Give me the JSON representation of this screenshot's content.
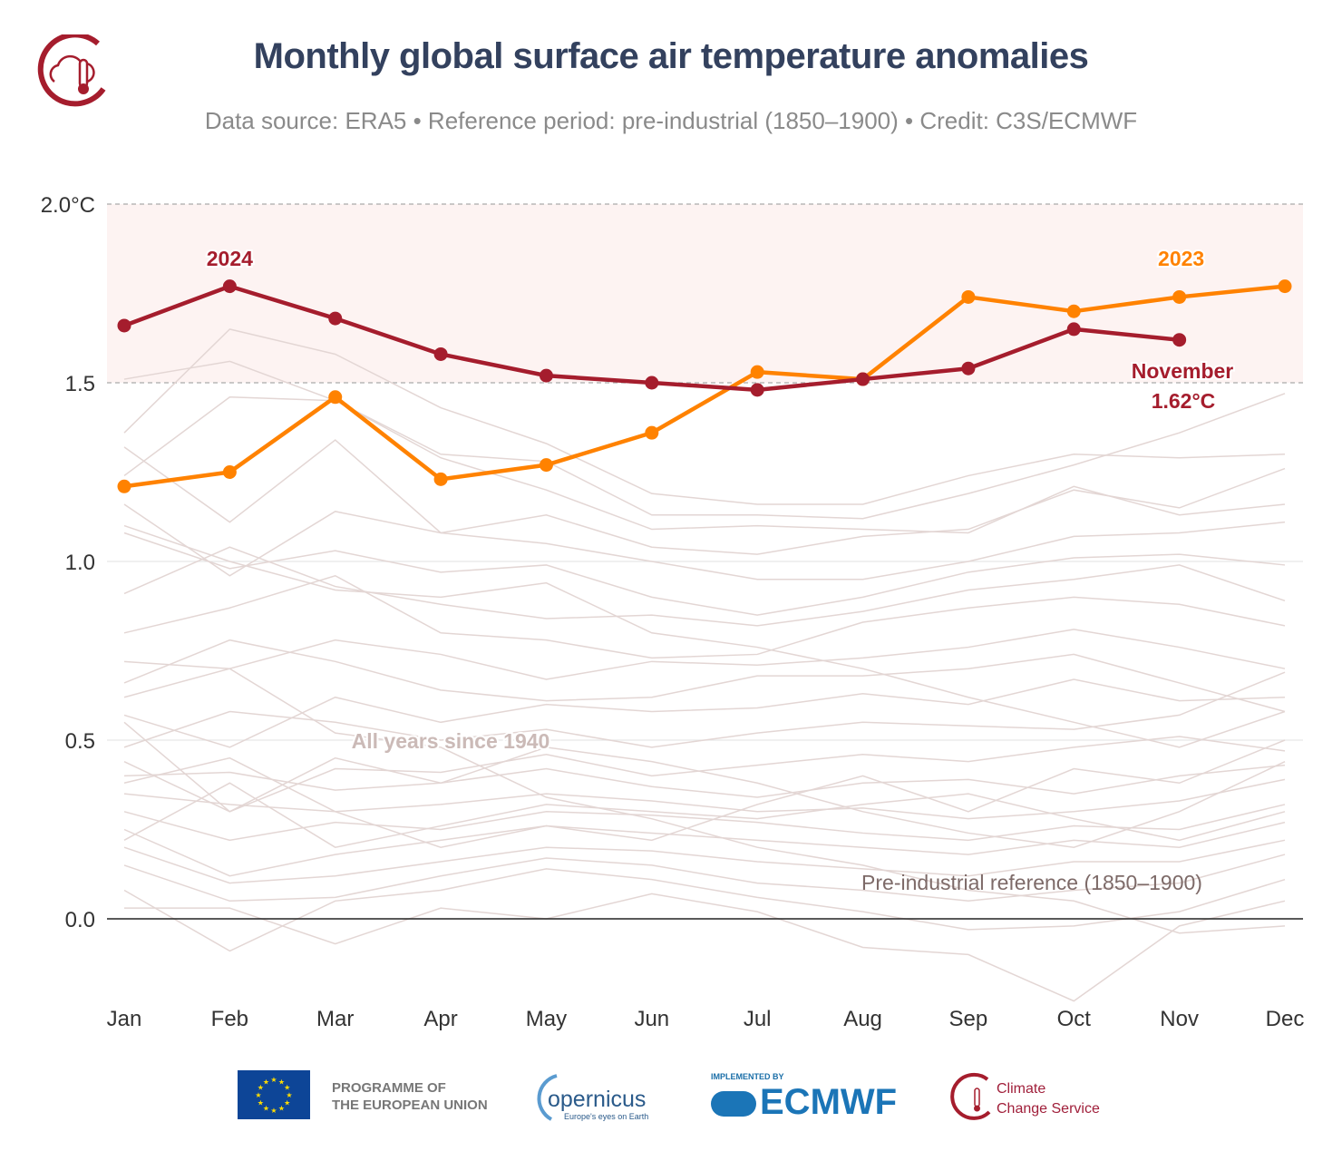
{
  "header": {
    "title": "Monthly global surface air temperature anomalies",
    "subtitle": "Data source: ERA5 • Reference period: pre-industrial (1850–1900) • Credit: C3S/ECMWF",
    "logo": "climate-change-service-logo"
  },
  "footer": {
    "eu_text_1": "PROGRAMME OF",
    "eu_text_2": "THE EUROPEAN UNION",
    "copernicus": "opernicus",
    "copernicus_tagline": "Europe's eyes on Earth",
    "implemented_by": "IMPLEMENTED BY",
    "ecmwf": "ECMWF",
    "c3s_1": "Climate",
    "c3s_2": "Change Service"
  },
  "chart_data": {
    "type": "line",
    "categories": [
      "Jan",
      "Feb",
      "Mar",
      "Apr",
      "May",
      "Jun",
      "Jul",
      "Aug",
      "Sep",
      "Oct",
      "Nov",
      "Dec"
    ],
    "ylim": [
      -0.25,
      2.0
    ],
    "yticks": [
      0.0,
      0.5,
      1.0,
      1.5,
      2.0
    ],
    "ytick_labels": [
      "0.0",
      "0.5",
      "1.0",
      "1.5",
      "2.0°C"
    ],
    "grid": true,
    "highlight_band": [
      1.5,
      2.0
    ],
    "colors": {
      "2024": "#a51d2d",
      "2023": "#ff8200",
      "background": "#e3d6d4",
      "band": "#fdf3f2"
    },
    "series": [
      {
        "name": "2024",
        "values": [
          1.66,
          1.77,
          1.68,
          1.58,
          1.52,
          1.5,
          1.48,
          1.51,
          1.54,
          1.65,
          1.62,
          null
        ]
      },
      {
        "name": "2023",
        "values": [
          1.21,
          1.25,
          1.46,
          1.23,
          1.27,
          1.36,
          1.53,
          1.51,
          1.74,
          1.7,
          1.74,
          1.77
        ]
      }
    ],
    "background_series_label": "All years since 1940",
    "background_series": [
      [
        1.36,
        1.65,
        1.58,
        1.43,
        1.33,
        1.19,
        1.16,
        1.16,
        1.24,
        1.3,
        1.29,
        1.3
      ],
      [
        1.51,
        1.56,
        1.45,
        1.3,
        1.28,
        1.13,
        1.13,
        1.12,
        1.19,
        1.27,
        1.36,
        1.47
      ],
      [
        1.24,
        1.46,
        1.45,
        1.29,
        1.2,
        1.09,
        1.1,
        1.09,
        1.08,
        1.21,
        1.13,
        1.16
      ],
      [
        1.32,
        1.11,
        1.34,
        1.08,
        1.13,
        1.04,
        1.02,
        1.07,
        1.09,
        1.2,
        1.15,
        1.26
      ],
      [
        1.16,
        0.96,
        1.14,
        1.08,
        1.05,
        1.0,
        0.95,
        0.95,
        1.0,
        1.07,
        1.08,
        1.11
      ],
      [
        1.08,
        0.98,
        1.03,
        0.97,
        0.99,
        0.9,
        0.85,
        0.9,
        0.97,
        1.01,
        1.02,
        0.99
      ],
      [
        0.91,
        1.04,
        0.93,
        0.88,
        0.84,
        0.85,
        0.82,
        0.86,
        0.92,
        0.95,
        0.99,
        0.89
      ],
      [
        0.8,
        0.87,
        0.96,
        0.8,
        0.78,
        0.73,
        0.74,
        0.83,
        0.87,
        0.9,
        0.88,
        0.82
      ],
      [
        0.72,
        0.7,
        0.78,
        0.74,
        0.67,
        0.72,
        0.71,
        0.73,
        0.76,
        0.81,
        0.76,
        0.7
      ],
      [
        0.66,
        0.78,
        0.72,
        0.64,
        0.61,
        0.62,
        0.68,
        0.68,
        0.7,
        0.74,
        0.66,
        0.58
      ],
      [
        0.57,
        0.48,
        0.62,
        0.55,
        0.6,
        0.58,
        0.59,
        0.63,
        0.6,
        0.67,
        0.61,
        0.62
      ],
      [
        0.48,
        0.58,
        0.55,
        0.5,
        0.53,
        0.48,
        0.52,
        0.55,
        0.54,
        0.53,
        0.57,
        0.69
      ],
      [
        0.44,
        0.3,
        0.42,
        0.41,
        0.46,
        0.4,
        0.43,
        0.46,
        0.44,
        0.48,
        0.51,
        0.47
      ],
      [
        0.4,
        0.41,
        0.36,
        0.38,
        0.42,
        0.37,
        0.34,
        0.38,
        0.39,
        0.35,
        0.4,
        0.43
      ],
      [
        0.35,
        0.32,
        0.3,
        0.32,
        0.35,
        0.33,
        0.3,
        0.31,
        0.28,
        0.3,
        0.33,
        0.39
      ],
      [
        0.3,
        0.22,
        0.27,
        0.25,
        0.3,
        0.29,
        0.27,
        0.24,
        0.22,
        0.26,
        0.25,
        0.32
      ],
      [
        0.25,
        0.12,
        0.18,
        0.22,
        0.26,
        0.24,
        0.22,
        0.2,
        0.18,
        0.22,
        0.2,
        0.27
      ],
      [
        0.2,
        0.1,
        0.12,
        0.16,
        0.2,
        0.19,
        0.16,
        0.14,
        0.12,
        0.16,
        0.16,
        0.22
      ],
      [
        0.15,
        0.05,
        0.06,
        0.12,
        0.17,
        0.15,
        0.1,
        0.08,
        0.05,
        0.08,
        0.1,
        0.18
      ],
      [
        0.08,
        -0.09,
        0.05,
        0.08,
        0.14,
        0.11,
        0.06,
        0.02,
        -0.03,
        -0.02,
        0.02,
        0.11
      ],
      [
        0.03,
        0.03,
        -0.07,
        0.03,
        0.0,
        0.07,
        0.02,
        -0.08,
        -0.1,
        -0.23,
        -0.02,
        0.05
      ],
      [
        0.22,
        0.38,
        0.2,
        0.26,
        0.32,
        0.3,
        0.28,
        0.32,
        0.35,
        0.28,
        0.22,
        0.3
      ],
      [
        0.55,
        0.3,
        0.45,
        0.38,
        0.48,
        0.44,
        0.38,
        0.3,
        0.24,
        0.2,
        0.3,
        0.44
      ],
      [
        0.38,
        0.45,
        0.3,
        0.2,
        0.26,
        0.22,
        0.32,
        0.4,
        0.3,
        0.42,
        0.38,
        0.5
      ],
      [
        1.1,
        1.0,
        0.92,
        0.9,
        0.94,
        0.8,
        0.76,
        0.7,
        0.62,
        0.55,
        0.48,
        0.58
      ],
      [
        0.62,
        0.7,
        0.52,
        0.48,
        0.34,
        0.28,
        0.2,
        0.15,
        0.08,
        0.05,
        -0.04,
        -0.02
      ]
    ],
    "annotations": {
      "label_2024": "2024",
      "label_2023": "2023",
      "last_month": "November",
      "last_value": "1.62°C",
      "reference": "Pre-industrial reference (1850–1900)"
    }
  }
}
